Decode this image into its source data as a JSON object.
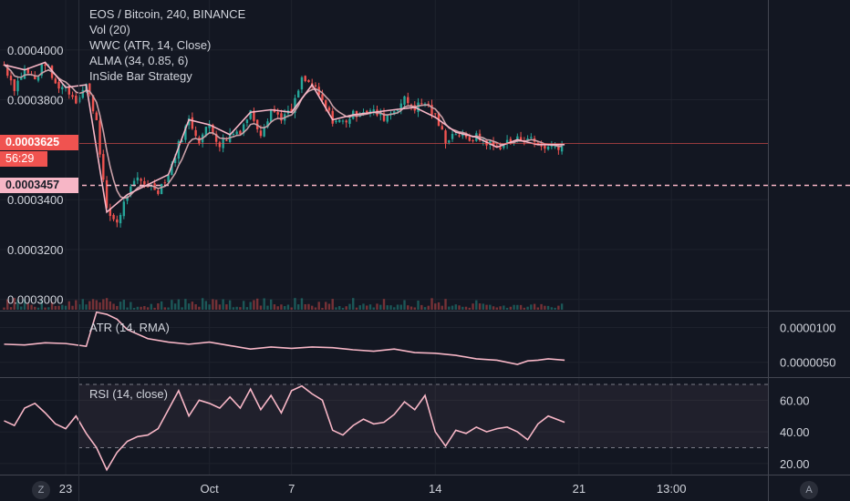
{
  "header": {
    "symbol_line": "EOS / Bitcoin, 240, BINANCE",
    "indicators": [
      "Vol (20)",
      "WWC (ATR, 14, Close)",
      "ALMA (34, 0.85, 6)",
      "InSide Bar Strategy"
    ]
  },
  "price_tags": {
    "current": "0.0003625",
    "countdown": "56:29",
    "level": "0.0003457"
  },
  "bottom_buttons": {
    "left": "Z",
    "right": "A"
  },
  "colors": {
    "background": "#131722",
    "up": "#26a69a",
    "down": "#ef5350",
    "pink": "#f7b6c6",
    "alma": "#c9a0a7",
    "grid": "#1e222d"
  },
  "chart_data": [
    {
      "type": "candlestick",
      "pane": "price",
      "title": "EOS / Bitcoin, 240, BINANCE",
      "y_ticks": [
        0.0003,
        0.00032,
        0.00034,
        0.00038,
        0.0004
      ],
      "y_tick_labels": [
        "0.0003000",
        "0.0003200",
        "0.0003400",
        "0.0003800",
        "0.0004000"
      ],
      "ylim": [
        0.0002955,
        0.00042
      ],
      "x_ticks": [
        "23",
        "Oct",
        "7",
        "14",
        "21",
        "13:00"
      ],
      "x_tick_positions": [
        3.0,
        10.0,
        14.0,
        21.0,
        28.0,
        32.5
      ],
      "xlim": [
        -0.2,
        37.2
      ],
      "grid": true,
      "horizontal_levels": [
        0.0003625,
        0.0003457
      ],
      "price_series": {
        "x": [
          0,
          0.5,
          1,
          1.5,
          2,
          2.5,
          3,
          3.5,
          4,
          4.5,
          5,
          5.5,
          6,
          6.5,
          7,
          7.5,
          8,
          8.5,
          9,
          9.5,
          10,
          10.5,
          11,
          11.5,
          12,
          12.5,
          13,
          13.5,
          14,
          14.5,
          15,
          15.5,
          16,
          16.5,
          17,
          17.5,
          18,
          18.5,
          19,
          19.5,
          20,
          20.5,
          21,
          21.5,
          22,
          22.5,
          23,
          23.5,
          24,
          24.5,
          25,
          25.5,
          26,
          26.5,
          27.3
        ],
        "close": [
          0.000394,
          0.000385,
          0.000392,
          0.000388,
          0.000395,
          0.000386,
          0.000385,
          0.00038,
          0.000386,
          0.000372,
          0.000335,
          0.000331,
          0.000342,
          0.000348,
          0.000346,
          0.000344,
          0.00035,
          0.000362,
          0.000372,
          0.000364,
          0.00037,
          0.000362,
          0.000366,
          0.000368,
          0.000375,
          0.000367,
          0.000376,
          0.000373,
          0.000375,
          0.000388,
          0.000386,
          0.000379,
          0.000372,
          0.000371,
          0.000374,
          0.000376,
          0.000375,
          0.000373,
          0.000376,
          0.00038,
          0.000377,
          0.000379,
          0.000373,
          0.000364,
          0.000367,
          0.000364,
          0.000365,
          0.000363,
          0.000361,
          0.000363,
          0.000364,
          0.000365,
          0.000362,
          0.000361,
          0.000362
        ]
      }
    },
    {
      "type": "line",
      "pane": "atr",
      "title": "ATR (14, RMA)",
      "y_ticks": [
        5e-06,
        1e-05
      ],
      "y_tick_labels": [
        "0.0000050",
        "0.0000100"
      ],
      "ylim": [
        3e-06,
        1.23e-05
      ],
      "x": [
        0,
        1,
        2,
        3,
        4,
        4.5,
        5,
        5.5,
        6,
        7,
        8,
        9,
        10,
        11,
        12,
        13,
        14,
        15,
        16,
        17,
        18,
        19,
        20,
        21,
        22,
        23,
        24,
        25,
        25.5,
        26,
        26.5,
        27.3
      ],
      "values": [
        7.6e-06,
        7.5e-06,
        7.8e-06,
        7.7e-06,
        7.3e-06,
        1.22e-05,
        1.19e-05,
        1.12e-05,
        9.7e-06,
        8.4e-06,
        7.9e-06,
        7.6e-06,
        7.9e-06,
        7.4e-06,
        6.9e-06,
        7.2e-06,
        7e-06,
        7.2e-06,
        7.1e-06,
        6.8e-06,
        6.6e-06,
        6.9e-06,
        6.4e-06,
        6.3e-06,
        6e-06,
        5.5e-06,
        5.3e-06,
        4.7e-06,
        5.2e-06,
        5.3e-06,
        5.5e-06,
        5.3e-06
      ]
    },
    {
      "type": "line",
      "pane": "rsi",
      "title": "RSI (14, close)",
      "y_ticks": [
        20,
        40,
        60
      ],
      "y_tick_labels": [
        "20.00",
        "40.00",
        "60.00"
      ],
      "ylim": [
        13,
        74
      ],
      "bands": [
        30,
        70
      ],
      "x": [
        0,
        0.5,
        1,
        1.5,
        2,
        2.5,
        3,
        3.5,
        4,
        4.5,
        5,
        5.5,
        6,
        6.5,
        7,
        7.5,
        8,
        8.5,
        9,
        9.5,
        10,
        10.5,
        11,
        11.5,
        12,
        12.5,
        13,
        13.5,
        14,
        14.5,
        15,
        15.5,
        16,
        16.5,
        17,
        17.5,
        18,
        18.5,
        19,
        19.5,
        20,
        20.5,
        21,
        21.5,
        22,
        22.5,
        23,
        23.5,
        24,
        24.5,
        25,
        25.5,
        26,
        26.5,
        27.3
      ],
      "values": [
        47,
        44,
        55,
        58,
        52,
        45,
        42,
        50,
        39,
        30,
        16,
        27,
        34,
        37,
        38,
        42,
        54,
        66,
        50,
        60,
        58,
        55,
        62,
        55,
        67,
        54,
        63,
        52,
        66,
        69,
        64,
        60,
        41,
        38,
        44,
        48,
        45,
        46,
        51,
        59,
        54,
        63,
        40,
        31,
        41,
        39,
        43,
        40,
        42,
        43,
        40,
        35,
        45,
        50,
        46
      ]
    }
  ]
}
